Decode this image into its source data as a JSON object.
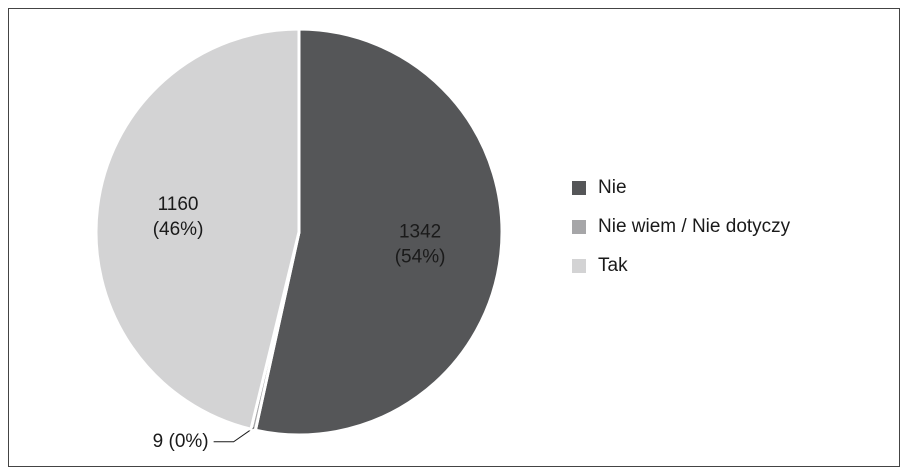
{
  "chart_data": {
    "type": "pie",
    "categories": [
      "Nie",
      "Nie wiem / Nie dotyczy",
      "Tak"
    ],
    "values": [
      1342,
      9,
      1160
    ],
    "value_labels": [
      [
        "1342",
        "(54%)"
      ],
      [
        "9 (0%)"
      ],
      [
        "1160",
        "(46%)"
      ]
    ],
    "colors": [
      "#555658",
      "#a6a6a8",
      "#d3d3d4"
    ],
    "legend": "right"
  }
}
